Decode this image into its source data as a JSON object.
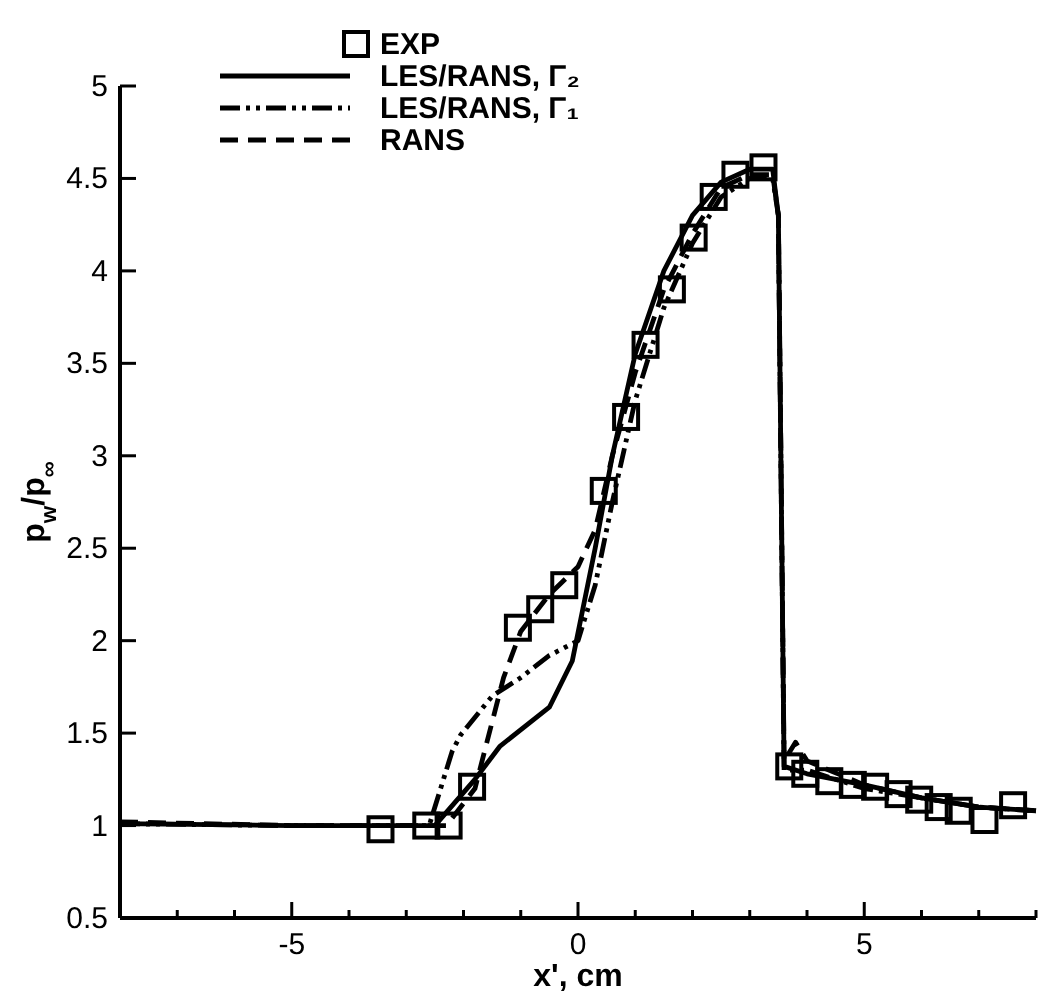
{
  "chart_data": {
    "type": "line",
    "xlabel": "x', cm",
    "ylabel": "p$_{w}$/p$_{∞}$",
    "xlim": [
      -8,
      8
    ],
    "ylim": [
      0.5,
      5
    ],
    "xticks": [
      {
        "value": -8,
        "label": null
      },
      {
        "value": -7,
        "label": null
      },
      {
        "value": -6,
        "label": null
      },
      -5,
      {
        "value": -4,
        "label": null
      },
      {
        "value": -3,
        "label": null
      },
      {
        "value": -2,
        "label": null
      },
      {
        "value": -1,
        "label": null
      },
      0,
      {
        "value": 1,
        "label": null
      },
      {
        "value": 2,
        "label": null
      },
      {
        "value": 3,
        "label": null
      },
      {
        "value": 4,
        "label": null
      },
      5,
      {
        "value": 6,
        "label": null
      },
      {
        "value": 7,
        "label": null
      },
      {
        "value": 8,
        "label": null
      }
    ],
    "yticks": [
      0.5,
      1,
      1.5,
      2,
      2.5,
      3,
      3.5,
      4,
      4.5,
      5
    ],
    "legend": "top left",
    "grid": false,
    "series": [
      {
        "name": "EXP",
        "type": "scatter",
        "marker": "square",
        "color": "#000000",
        "x": [
          -3.45,
          -2.65,
          -2.26,
          -1.85,
          -1.05,
          -0.66,
          -0.24,
          0.45,
          0.84,
          1.18,
          1.64,
          2.02,
          2.37,
          2.75,
          3.24,
          3.69,
          3.97,
          4.39,
          4.8,
          5.19,
          5.6,
          5.96,
          6.3,
          6.65,
          7.1,
          7.6
        ],
        "values": [
          0.98,
          1.0,
          1.0,
          1.21,
          2.07,
          2.17,
          2.3,
          2.81,
          3.21,
          3.6,
          3.9,
          4.18,
          4.4,
          4.52,
          4.56,
          1.32,
          1.28,
          1.24,
          1.22,
          1.21,
          1.17,
          1.14,
          1.1,
          1.08,
          1.03,
          1.11
        ]
      },
      {
        "name": "LES/RANS, Γ₂",
        "line_style": "solid",
        "color": "#000000",
        "x": [
          -8,
          -5,
          -2.5,
          -1.8,
          -1.36,
          -0.5,
          -0.1,
          0.3,
          0.6,
          1.0,
          1.5,
          2.0,
          2.5,
          3.0,
          3.4,
          3.5,
          3.6,
          4,
          5,
          6,
          7,
          8
        ],
        "values": [
          1.01,
          1.0,
          1.0,
          1.25,
          1.43,
          1.64,
          1.89,
          2.5,
          3.0,
          3.55,
          4.0,
          4.3,
          4.48,
          4.55,
          4.55,
          4.3,
          1.32,
          1.28,
          1.22,
          1.15,
          1.1,
          1.08
        ]
      },
      {
        "name": "LES/RANS, Γ₁",
        "line_style": "dashdotdot",
        "color": "#000000",
        "x": [
          -8,
          -5,
          -2.6,
          -2.2,
          -2.05,
          -1.5,
          -1.0,
          -0.5,
          0,
          0.3,
          0.6,
          1.0,
          1.5,
          2.0,
          2.5,
          3.0,
          3.4,
          3.5,
          3.6,
          4,
          5,
          6,
          7,
          8
        ],
        "values": [
          1.01,
          1.0,
          1.0,
          1.4,
          1.49,
          1.7,
          1.8,
          1.92,
          2.0,
          2.3,
          2.75,
          3.3,
          3.8,
          4.15,
          4.4,
          4.5,
          4.5,
          4.3,
          1.3,
          1.3,
          1.2,
          1.15,
          1.1,
          1.08
        ]
      },
      {
        "name": "RANS",
        "line_style": "dashed",
        "color": "#000000",
        "x": [
          -8,
          -5,
          -2.3,
          -1.8,
          -1.3,
          -1.0,
          -0.5,
          0,
          0.3,
          0.6,
          1.0,
          1.5,
          2.0,
          2.5,
          3.0,
          3.4,
          3.5,
          3.6,
          3.8,
          4.0,
          5,
          6,
          7,
          8
        ],
        "values": [
          1.02,
          1.0,
          1.0,
          1.2,
          1.8,
          2.05,
          2.25,
          2.4,
          2.6,
          3.0,
          3.45,
          3.9,
          4.2,
          4.45,
          4.52,
          4.52,
          4.3,
          1.35,
          1.45,
          1.35,
          1.22,
          1.15,
          1.1,
          1.08
        ]
      }
    ]
  }
}
